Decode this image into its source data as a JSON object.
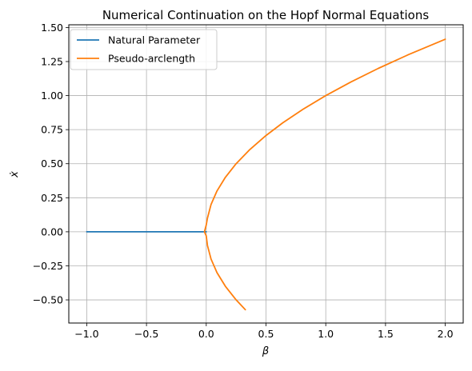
{
  "chart_data": {
    "type": "line",
    "title": "Numerical Continuation on the Hopf Normal Equations",
    "xlabel": "β",
    "ylabel": "ẋ",
    "xlim": [
      -1.15,
      2.15
    ],
    "ylim": [
      -0.67,
      1.52
    ],
    "grid": true,
    "legend_position": "top-left",
    "x_ticks": [
      -1.0,
      -0.5,
      0.0,
      0.5,
      1.0,
      1.5,
      2.0
    ],
    "x_tick_labels": [
      "−1.0",
      "−0.5",
      "0.0",
      "0.5",
      "1.0",
      "1.5",
      "2.0"
    ],
    "y_ticks": [
      -0.5,
      -0.25,
      0.0,
      0.25,
      0.5,
      0.75,
      1.0,
      1.25,
      1.5
    ],
    "y_tick_labels": [
      "−0.50",
      "−0.25",
      "0.00",
      "0.25",
      "0.50",
      "0.75",
      "1.00",
      "1.25",
      "1.50"
    ],
    "series": [
      {
        "name": "Natural Parameter",
        "color": "#1f77b4",
        "x": [
          -1.0,
          -0.75,
          -0.5,
          -0.25,
          -0.02,
          0.0
        ],
        "y": [
          0.0,
          0.0,
          0.0,
          0.0,
          0.0,
          0.0
        ]
      },
      {
        "name": "Pseudo-arclength",
        "color": "#ff7f0e",
        "x": [
          0.327,
          0.25,
          0.16,
          0.09,
          0.04,
          0.01,
          0.0,
          -0.015,
          0.0,
          0.01,
          0.04,
          0.09,
          0.16,
          0.25,
          0.36,
          0.5,
          0.64,
          0.81,
          1.0,
          1.21,
          1.44,
          1.69,
          2.0
        ],
        "y": [
          -0.572,
          -0.5,
          -0.4,
          -0.3,
          -0.2,
          -0.1,
          -0.03,
          0.0,
          0.05,
          0.1,
          0.2,
          0.3,
          0.4,
          0.5,
          0.6,
          0.707,
          0.8,
          0.9,
          1.0,
          1.1,
          1.2,
          1.3,
          1.414
        ]
      }
    ]
  }
}
